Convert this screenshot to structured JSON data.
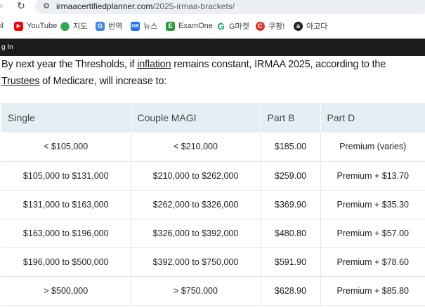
{
  "browser": {
    "url_domain": "irmaacertifiedplanner.com",
    "url_path": "/2025-irmaa-brackets/"
  },
  "bookmarks": [
    {
      "label": "il",
      "icon": "none"
    },
    {
      "label": "YouTube",
      "icon": "youtube-icon",
      "color": "#ff0000"
    },
    {
      "label": "지도",
      "icon": "map-pin-icon",
      "color": "#34a853"
    },
    {
      "label": "번역",
      "icon": "translate-icon",
      "color": "#4285f4"
    },
    {
      "label": "뉴스",
      "icon": "news-icon",
      "color": "#1a73e8"
    },
    {
      "label": "ExamOne",
      "icon": "examone-icon",
      "color": "#2e9b3e"
    },
    {
      "label": "G마켓",
      "icon": "gmarket-icon",
      "color": "#00a650"
    },
    {
      "label": "쿠팡!",
      "icon": "coupang-icon",
      "color": "#e2342b"
    },
    {
      "label": "아고다",
      "icon": "agoda-icon",
      "color": "#222222"
    }
  ],
  "site_bar": {
    "login_text": "g In"
  },
  "intro": {
    "part1": "By next year the Thresholds, if ",
    "link1": "inflation",
    "part2": " remains constant, IRMAA 2025, according to the ",
    "link2": "Trustees",
    "part3": " of Medicare, will increase to:"
  },
  "table": {
    "headers": [
      "Single",
      "Couple MAGI",
      "Part B",
      "Part D"
    ],
    "rows": [
      [
        "< $105,000",
        "< $210,000",
        "$185.00",
        "Premium (varies)"
      ],
      [
        "$105,000 to $131,000",
        "$210,000 to $262,000",
        "$259.00",
        "Premium + $13.70"
      ],
      [
        "$131,000 to $163,000",
        "$262,000 to $326,000",
        "$369.90",
        "Premium + $35.30"
      ],
      [
        "$163,000 to $196,000",
        "$326,000 to $392,000",
        "$480.80",
        "Premium + $57.00"
      ],
      [
        "$196,000 to $500,000",
        "$392,000 to $750,000",
        "$591.90",
        "Premium + $78.60"
      ],
      [
        "> $500,000",
        "> $750,000",
        "$628.90",
        "Premium + $85.80"
      ]
    ]
  }
}
